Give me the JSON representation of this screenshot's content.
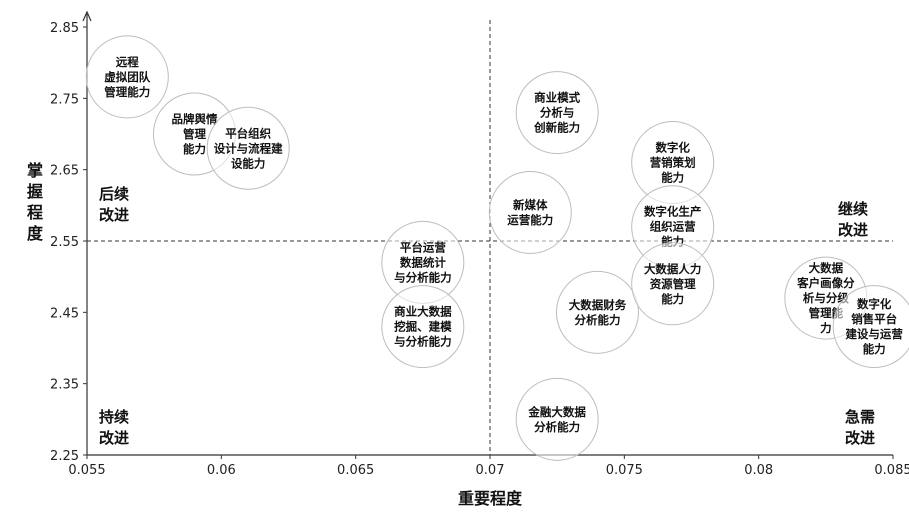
{
  "chart_data": {
    "type": "scatter",
    "xlabel": "重要程度",
    "ylabel": "掌握程度",
    "xlim": [
      0.055,
      0.085
    ],
    "ylim": [
      2.25,
      2.85
    ],
    "xticks": [
      "0.055",
      "0.06",
      "0.065",
      "0.07",
      "0.075",
      "0.08",
      "0.085"
    ],
    "yticks": [
      "2.25",
      "2.35",
      "2.45",
      "2.55",
      "2.65",
      "2.75",
      "2.85"
    ],
    "reference_lines": {
      "x": 0.07,
      "y": 2.55
    },
    "grid": false,
    "quadrant_labels": [
      {
        "lines": [
          "后续",
          "改进"
        ],
        "position": "upper-left"
      },
      {
        "lines": [
          "继续",
          "改进"
        ],
        "position": "upper-right"
      },
      {
        "lines": [
          "持续",
          "改进"
        ],
        "position": "lower-left"
      },
      {
        "lines": [
          "急需",
          "改进"
        ],
        "position": "lower-right"
      }
    ],
    "points": [
      {
        "x": 0.0565,
        "y": 2.78,
        "label_lines": [
          "远程",
          "虚拟团队",
          "管理能力"
        ]
      },
      {
        "x": 0.059,
        "y": 2.7,
        "label_lines": [
          "品牌舆情",
          "管理",
          "能力"
        ]
      },
      {
        "x": 0.061,
        "y": 2.68,
        "label_lines": [
          "平台组织",
          "设计与流程建",
          "设能力"
        ]
      },
      {
        "x": 0.0675,
        "y": 2.52,
        "label_lines": [
          "平台运营",
          "数据统计",
          "与分析能力"
        ]
      },
      {
        "x": 0.0675,
        "y": 2.43,
        "label_lines": [
          "商业大数据",
          "挖掘、建模",
          "与分析能力"
        ]
      },
      {
        "x": 0.0725,
        "y": 2.73,
        "label_lines": [
          "商业模式",
          "分析与",
          "创新能力"
        ]
      },
      {
        "x": 0.0715,
        "y": 2.59,
        "label_lines": [
          "新媒体",
          "运营能力"
        ]
      },
      {
        "x": 0.074,
        "y": 2.45,
        "label_lines": [
          "大数据财务",
          "分析能力"
        ]
      },
      {
        "x": 0.0725,
        "y": 2.3,
        "label_lines": [
          "金融大数据",
          "分析能力"
        ]
      },
      {
        "x": 0.0768,
        "y": 2.66,
        "label_lines": [
          "数字化",
          "营销策划",
          "能力"
        ]
      },
      {
        "x": 0.0768,
        "y": 2.57,
        "label_lines": [
          "数字化生产",
          "组织运营",
          "能力"
        ]
      },
      {
        "x": 0.0768,
        "y": 2.49,
        "label_lines": [
          "大数据人力",
          "资源管理",
          "能力"
        ]
      },
      {
        "x": 0.0825,
        "y": 2.47,
        "label_lines": [
          "大数据",
          "客户画像分",
          "析与分级",
          "管理能",
          "力"
        ]
      },
      {
        "x": 0.0843,
        "y": 2.43,
        "label_lines": [
          "数字化",
          "销售平台",
          "建设与运营",
          "能力"
        ]
      }
    ]
  }
}
